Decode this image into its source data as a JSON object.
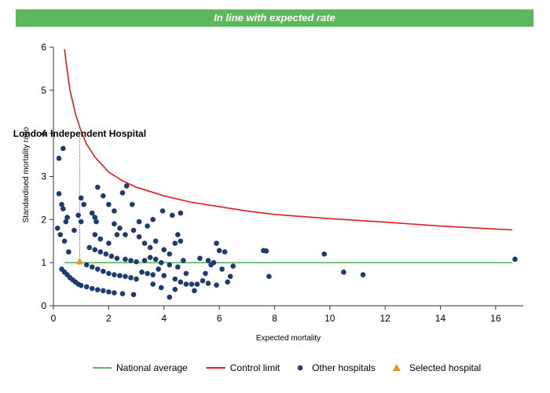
{
  "banner": {
    "text": "In line with expected rate",
    "color": "#5cb85c"
  },
  "chart_data": {
    "type": "scatter",
    "title": "",
    "xlabel": "Expected mortality",
    "ylabel": "Standardised mortality ratio",
    "xlim": [
      0,
      17
    ],
    "ylim": [
      0,
      6
    ],
    "xticks": [
      0,
      2,
      4,
      6,
      8,
      10,
      12,
      14,
      16
    ],
    "yticks": [
      0,
      1,
      2,
      3,
      4,
      5,
      6
    ],
    "grid": false,
    "legend_position": "bottom",
    "annotation": {
      "text": "London Independent Hospital",
      "x": 0.95
    },
    "series": [
      {
        "name": "National average",
        "kind": "line",
        "color": "#5cb85c",
        "x": [
          0.4,
          16.6
        ],
        "y": [
          1,
          1
        ]
      },
      {
        "name": "Control limit",
        "kind": "line",
        "color": "#e31a1c",
        "x": [
          0.4,
          0.5,
          0.6,
          0.8,
          1.0,
          1.2,
          1.5,
          2.0,
          2.5,
          3.0,
          4.0,
          5.0,
          6.0,
          7.0,
          8.0,
          10.0,
          12.0,
          14.0,
          16.6
        ],
        "y": [
          5.95,
          5.45,
          5.0,
          4.45,
          4.05,
          3.75,
          3.45,
          3.1,
          2.9,
          2.75,
          2.55,
          2.4,
          2.3,
          2.2,
          2.12,
          2.02,
          1.94,
          1.85,
          1.76
        ]
      },
      {
        "name": "Other hospitals",
        "kind": "scatter",
        "color": "#1f3a6e",
        "points": [
          [
            0.35,
            3.65
          ],
          [
            0.2,
            3.42
          ],
          [
            0.2,
            2.6
          ],
          [
            0.3,
            2.35
          ],
          [
            0.35,
            2.25
          ],
          [
            0.5,
            2.05
          ],
          [
            0.45,
            1.95
          ],
          [
            0.25,
            1.65
          ],
          [
            0.15,
            1.8
          ],
          [
            0.4,
            1.5
          ],
          [
            0.55,
            1.25
          ],
          [
            0.75,
            1.75
          ],
          [
            0.9,
            2.1
          ],
          [
            1.0,
            2.5
          ],
          [
            1.1,
            2.35
          ],
          [
            1.0,
            1.95
          ],
          [
            1.4,
            2.15
          ],
          [
            1.5,
            2.05
          ],
          [
            1.55,
            1.95
          ],
          [
            1.6,
            2.75
          ],
          [
            1.8,
            2.55
          ],
          [
            2.0,
            2.35
          ],
          [
            2.2,
            2.2
          ],
          [
            2.5,
            2.62
          ],
          [
            2.65,
            2.78
          ],
          [
            2.85,
            2.35
          ],
          [
            3.1,
            1.95
          ],
          [
            3.4,
            1.85
          ],
          [
            3.6,
            2.0
          ],
          [
            3.95,
            2.2
          ],
          [
            4.3,
            2.1
          ],
          [
            4.6,
            2.15
          ],
          [
            1.5,
            1.65
          ],
          [
            1.7,
            1.55
          ],
          [
            2.0,
            1.45
          ],
          [
            2.3,
            1.65
          ],
          [
            2.2,
            1.9
          ],
          [
            2.4,
            1.8
          ],
          [
            2.6,
            1.65
          ],
          [
            2.9,
            1.75
          ],
          [
            3.1,
            1.6
          ],
          [
            3.3,
            1.45
          ],
          [
            3.5,
            1.35
          ],
          [
            3.7,
            1.5
          ],
          [
            4.0,
            1.3
          ],
          [
            4.2,
            1.2
          ],
          [
            4.4,
            1.45
          ],
          [
            4.6,
            1.5
          ],
          [
            4.5,
            1.65
          ],
          [
            1.3,
            1.35
          ],
          [
            1.5,
            1.3
          ],
          [
            1.7,
            1.25
          ],
          [
            1.9,
            1.2
          ],
          [
            2.1,
            1.15
          ],
          [
            2.3,
            1.1
          ],
          [
            2.6,
            1.08
          ],
          [
            2.8,
            1.05
          ],
          [
            3.0,
            1.02
          ],
          [
            3.3,
            1.05
          ],
          [
            3.5,
            1.12
          ],
          [
            3.7,
            1.08
          ],
          [
            3.9,
            1.0
          ],
          [
            4.2,
            0.95
          ],
          [
            4.5,
            0.9
          ],
          [
            4.7,
            1.05
          ],
          [
            4.8,
            0.75
          ],
          [
            1.2,
            0.95
          ],
          [
            1.4,
            0.9
          ],
          [
            1.6,
            0.85
          ],
          [
            1.8,
            0.8
          ],
          [
            2.0,
            0.75
          ],
          [
            2.2,
            0.72
          ],
          [
            2.4,
            0.7
          ],
          [
            2.6,
            0.68
          ],
          [
            2.8,
            0.65
          ],
          [
            3.0,
            0.62
          ],
          [
            3.2,
            0.78
          ],
          [
            3.4,
            0.75
          ],
          [
            3.6,
            0.72
          ],
          [
            3.8,
            0.85
          ],
          [
            4.0,
            0.7
          ],
          [
            4.4,
            0.62
          ],
          [
            4.6,
            0.55
          ],
          [
            4.8,
            0.5
          ],
          [
            0.3,
            0.85
          ],
          [
            0.4,
            0.78
          ],
          [
            0.5,
            0.72
          ],
          [
            0.6,
            0.65
          ],
          [
            0.7,
            0.6
          ],
          [
            0.8,
            0.55
          ],
          [
            0.9,
            0.5
          ],
          [
            1.0,
            0.47
          ],
          [
            1.2,
            0.44
          ],
          [
            1.4,
            0.4
          ],
          [
            1.6,
            0.37
          ],
          [
            1.8,
            0.35
          ],
          [
            2.0,
            0.32
          ],
          [
            2.2,
            0.3
          ],
          [
            2.5,
            0.28
          ],
          [
            2.9,
            0.26
          ],
          [
            3.6,
            0.5
          ],
          [
            3.9,
            0.42
          ],
          [
            4.2,
            0.2
          ],
          [
            4.4,
            0.38
          ],
          [
            5.0,
            0.5
          ],
          [
            5.2,
            0.5
          ],
          [
            5.4,
            0.58
          ],
          [
            5.5,
            0.75
          ],
          [
            5.3,
            1.1
          ],
          [
            5.6,
            1.05
          ],
          [
            5.7,
            0.95
          ],
          [
            5.8,
            1.0
          ],
          [
            5.9,
            1.45
          ],
          [
            6.0,
            1.28
          ],
          [
            6.2,
            1.25
          ],
          [
            6.3,
            0.55
          ],
          [
            6.4,
            0.68
          ],
          [
            6.5,
            0.92
          ],
          [
            6.1,
            0.85
          ],
          [
            5.6,
            0.52
          ],
          [
            5.9,
            0.48
          ],
          [
            5.1,
            0.35
          ],
          [
            7.6,
            1.28
          ],
          [
            7.7,
            1.27
          ],
          [
            7.8,
            0.68
          ],
          [
            9.8,
            1.2
          ],
          [
            10.5,
            0.78
          ],
          [
            11.2,
            0.72
          ],
          [
            16.7,
            1.08
          ]
        ]
      },
      {
        "name": "Selected hospital",
        "kind": "marker",
        "marker": "triangle",
        "color": "#f0901c",
        "points": [
          [
            0.95,
            1.03
          ]
        ]
      }
    ]
  }
}
